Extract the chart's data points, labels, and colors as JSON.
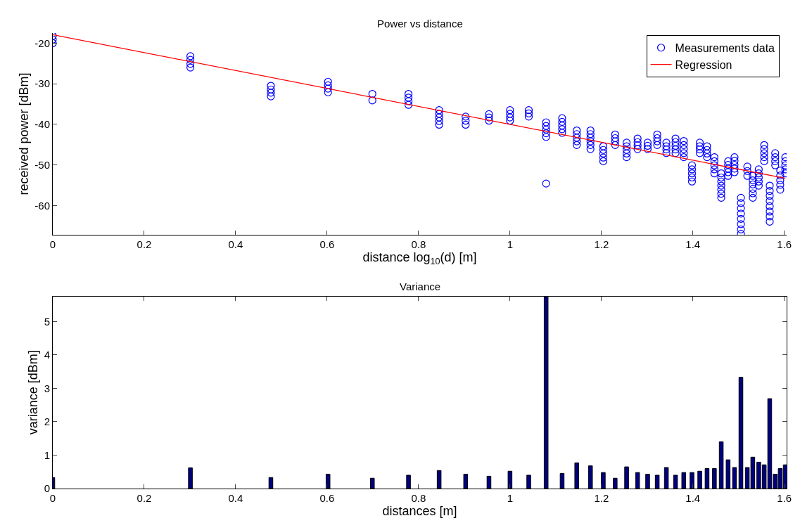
{
  "chart_data": [
    {
      "type": "scatter",
      "title": "Power vs distance",
      "xlabel": "distance log$_{10}$(d) [m]",
      "ylabel": "received power [dBm]",
      "xlim": [
        0,
        1.605
      ],
      "xticks": [
        0,
        0.2,
        0.4,
        0.6,
        0.8,
        1,
        1.2,
        1.4,
        1.6
      ],
      "ylim": [
        -67.2,
        -17.5
      ],
      "yticks": [
        -20,
        -30,
        -40,
        -50,
        -60
      ],
      "legend": "top right",
      "grid": false,
      "series": [
        {
          "name": "Measurements data",
          "type": "scatter",
          "marker": "circle",
          "color": "#0000ff",
          "x": [
            0,
            0,
            0,
            0.301,
            0.301,
            0.301,
            0.301,
            0.477,
            0.477,
            0.477,
            0.477,
            0.602,
            0.602,
            0.602,
            0.602,
            0.699,
            0.699,
            0.778,
            0.778,
            0.778,
            0.778,
            0.845,
            0.845,
            0.845,
            0.845,
            0.845,
            0.903,
            0.903,
            0.903,
            0.954,
            0.954,
            0.954,
            1.0,
            1.0,
            1.0,
            1.0,
            1.041,
            1.041,
            1.041,
            1.079,
            1.079,
            1.079,
            1.079,
            1.079,
            1.079,
            1.114,
            1.114,
            1.114,
            1.114,
            1.114,
            1.146,
            1.146,
            1.146,
            1.146,
            1.146,
            1.176,
            1.176,
            1.176,
            1.176,
            1.176,
            1.176,
            1.204,
            1.204,
            1.204,
            1.204,
            1.204,
            1.23,
            1.23,
            1.23,
            1.23,
            1.255,
            1.255,
            1.255,
            1.255,
            1.255,
            1.279,
            1.279,
            1.279,
            1.279,
            1.301,
            1.301,
            1.301,
            1.322,
            1.322,
            1.322,
            1.322,
            1.342,
            1.342,
            1.342,
            1.342,
            1.362,
            1.362,
            1.362,
            1.362,
            1.362,
            1.38,
            1.38,
            1.38,
            1.38,
            1.38,
            1.398,
            1.398,
            1.398,
            1.398,
            1.398,
            1.415,
            1.415,
            1.415,
            1.415,
            1.431,
            1.431,
            1.431,
            1.431,
            1.447,
            1.447,
            1.447,
            1.447,
            1.447,
            1.462,
            1.462,
            1.462,
            1.462,
            1.462,
            1.462,
            1.462,
            1.477,
            1.477,
            1.477,
            1.477,
            1.477,
            1.491,
            1.491,
            1.491,
            1.491,
            1.491,
            1.505,
            1.505,
            1.505,
            1.505,
            1.505,
            1.505,
            1.505,
            1.505,
            1.519,
            1.519,
            1.519,
            1.531,
            1.531,
            1.531,
            1.531,
            1.531,
            1.531,
            1.544,
            1.544,
            1.544,
            1.544,
            1.544,
            1.556,
            1.556,
            1.556,
            1.556,
            1.556,
            1.568,
            1.568,
            1.568,
            1.568,
            1.568,
            1.568,
            1.568,
            1.568,
            1.58,
            1.58,
            1.58,
            1.58,
            1.591,
            1.591,
            1.591,
            1.591,
            1.591,
            1.602,
            1.602,
            1.602,
            1.602,
            1.602
          ],
          "values": [
            -18.2,
            -19.1,
            -20,
            -23.2,
            -24.1,
            -25.1,
            -26.0,
            -30.5,
            -31.4,
            -32.2,
            -33.1,
            -29.5,
            -30.4,
            -31.2,
            -32.1,
            -32.5,
            -34.1,
            -32.5,
            -33.4,
            -34.3,
            -35.2,
            -36.5,
            -37.4,
            -38.3,
            -39.2,
            -40.1,
            -38.1,
            -39.1,
            -40.1,
            -37.5,
            -38.3,
            -39.1,
            -36.5,
            -37.4,
            -38.3,
            -39.1,
            -36.5,
            -37.3,
            -38.1,
            -39.5,
            -40.4,
            -41.3,
            -42.2,
            -43.1,
            -54.6,
            -38.5,
            -39.4,
            -40.3,
            -41.2,
            -42.1,
            -41.5,
            -42.4,
            -43.3,
            -44.2,
            -45.1,
            -41.5,
            -42.4,
            -43.3,
            -44.2,
            -45.1,
            -46.1,
            -45.4,
            -46.3,
            -47.2,
            -48.2,
            -49.1,
            -42.5,
            -43.4,
            -44.2,
            -45.1,
            -44.5,
            -45.4,
            -46.3,
            -47.2,
            -48.1,
            -43.5,
            -44.4,
            -45.2,
            -46.1,
            -44.5,
            -45.3,
            -46.1,
            -42.5,
            -43.4,
            -44.2,
            -45.1,
            -44.5,
            -45.4,
            -46.2,
            -47.1,
            -43.5,
            -44.4,
            -45.3,
            -46.2,
            -47.1,
            -44.1,
            -45.1,
            -46.1,
            -47.1,
            -48.1,
            -50.1,
            -51.1,
            -52.1,
            -53.1,
            -54.1,
            -44.5,
            -45.4,
            -46.2,
            -47.1,
            -45.4,
            -46.3,
            -47.2,
            -48.1,
            -48.1,
            -49.1,
            -50.1,
            -51.1,
            -52.1,
            -52.1,
            -53.1,
            -54.1,
            -55.1,
            -56.1,
            -57.1,
            -58.1,
            -49.1,
            -50,
            -50.9,
            -51.8,
            -52.7,
            -48.1,
            -49,
            -50,
            -50.9,
            -51.8,
            -58.1,
            -59.4,
            -60.7,
            -62,
            -63.3,
            -64.6,
            -65.9,
            -67,
            -50.4,
            -51.5,
            -52.7,
            -52.7,
            -53.8,
            -54.8,
            -55.9,
            -57,
            -58.1,
            -51.1,
            -52.1,
            -53.1,
            -54.1,
            -55.1,
            -45.1,
            -46.1,
            -47.1,
            -48.1,
            -49.1,
            -55.1,
            -56.4,
            -57.6,
            -58.9,
            -60.2,
            -61.5,
            -62.7,
            -64,
            -47.1,
            -48.1,
            -49.1,
            -50.1,
            -51.4,
            -52.6,
            -53.8,
            -54.9,
            -56.1,
            -48.1,
            -49.1,
            -50.1,
            -51.1,
            -52.1
          ]
        },
        {
          "name": "Regression",
          "type": "line",
          "line_style": "solid",
          "color": "#ff0000",
          "x": [
            0,
            1.602
          ],
          "values": [
            -17.9,
            -53.3
          ]
        }
      ]
    },
    {
      "type": "bar",
      "title": "Variance",
      "xlabel": "distances [m]",
      "ylabel": "variance [dBm]",
      "xlim": [
        0,
        1.605
      ],
      "xticks": [
        0,
        0.2,
        0.4,
        0.6,
        0.8,
        1,
        1.2,
        1.4,
        1.6
      ],
      "ylim": [
        0,
        5.75
      ],
      "yticks": [
        0,
        1,
        2,
        3,
        4,
        5
      ],
      "grid": false,
      "legend": false,
      "color": "#000080",
      "x": [
        0,
        0.301,
        0.477,
        0.602,
        0.699,
        0.778,
        0.845,
        0.903,
        0.954,
        1.0,
        1.041,
        1.079,
        1.114,
        1.146,
        1.176,
        1.204,
        1.23,
        1.255,
        1.279,
        1.301,
        1.322,
        1.342,
        1.362,
        1.38,
        1.398,
        1.415,
        1.431,
        1.447,
        1.462,
        1.477,
        1.491,
        1.505,
        1.519,
        1.531,
        1.544,
        1.556,
        1.568,
        1.58,
        1.591,
        1.602
      ],
      "values": [
        0.33,
        0.62,
        0.33,
        0.43,
        0.31,
        0.4,
        0.54,
        0.43,
        0.37,
        0.52,
        0.4,
        5.75,
        0.45,
        0.77,
        0.68,
        0.48,
        0.31,
        0.65,
        0.48,
        0.43,
        0.4,
        0.63,
        0.4,
        0.48,
        0.48,
        0.52,
        0.6,
        0.6,
        1.4,
        0.86,
        0.63,
        3.33,
        0.63,
        0.94,
        0.79,
        0.71,
        2.69,
        0.43,
        0.6,
        0.71
      ]
    }
  ]
}
